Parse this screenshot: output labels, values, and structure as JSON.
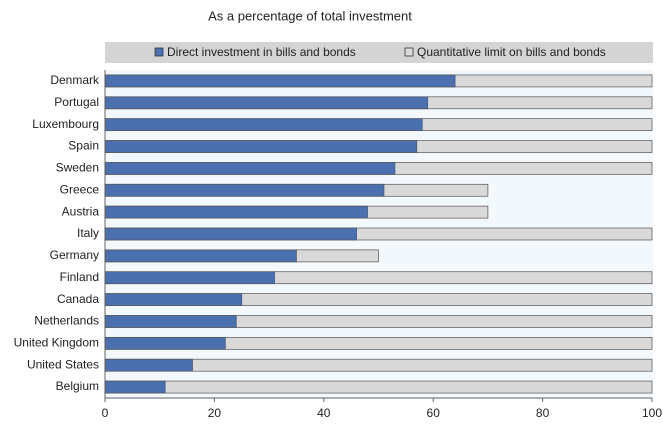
{
  "chart_data": {
    "type": "bar",
    "orientation": "horizontal",
    "title": "As a percentage of total investment",
    "categories": [
      "Denmark",
      "Portugal",
      "Luxembourg",
      "Spain",
      "Sweden",
      "Greece",
      "Austria",
      "Italy",
      "Germany",
      "Finland",
      "Canada",
      "Netherlands",
      "United Kingdom",
      "United States",
      "Belgium"
    ],
    "series": [
      {
        "name": "Quantitative limit on bills and bonds",
        "color": "#d9d9d9",
        "values": [
          100,
          100,
          100,
          100,
          100,
          70,
          70,
          100,
          50,
          100,
          100,
          100,
          100,
          100,
          100
        ]
      },
      {
        "name": "Direct investment in bills and bonds",
        "color": "#4a70b0",
        "values": [
          64,
          59,
          58,
          57,
          53,
          51,
          48,
          46,
          35,
          31,
          25,
          24,
          22,
          16,
          11
        ]
      }
    ],
    "xlim": [
      0,
      100
    ],
    "xticks": [
      0,
      20,
      40,
      60,
      80,
      100
    ],
    "legend": "top"
  }
}
